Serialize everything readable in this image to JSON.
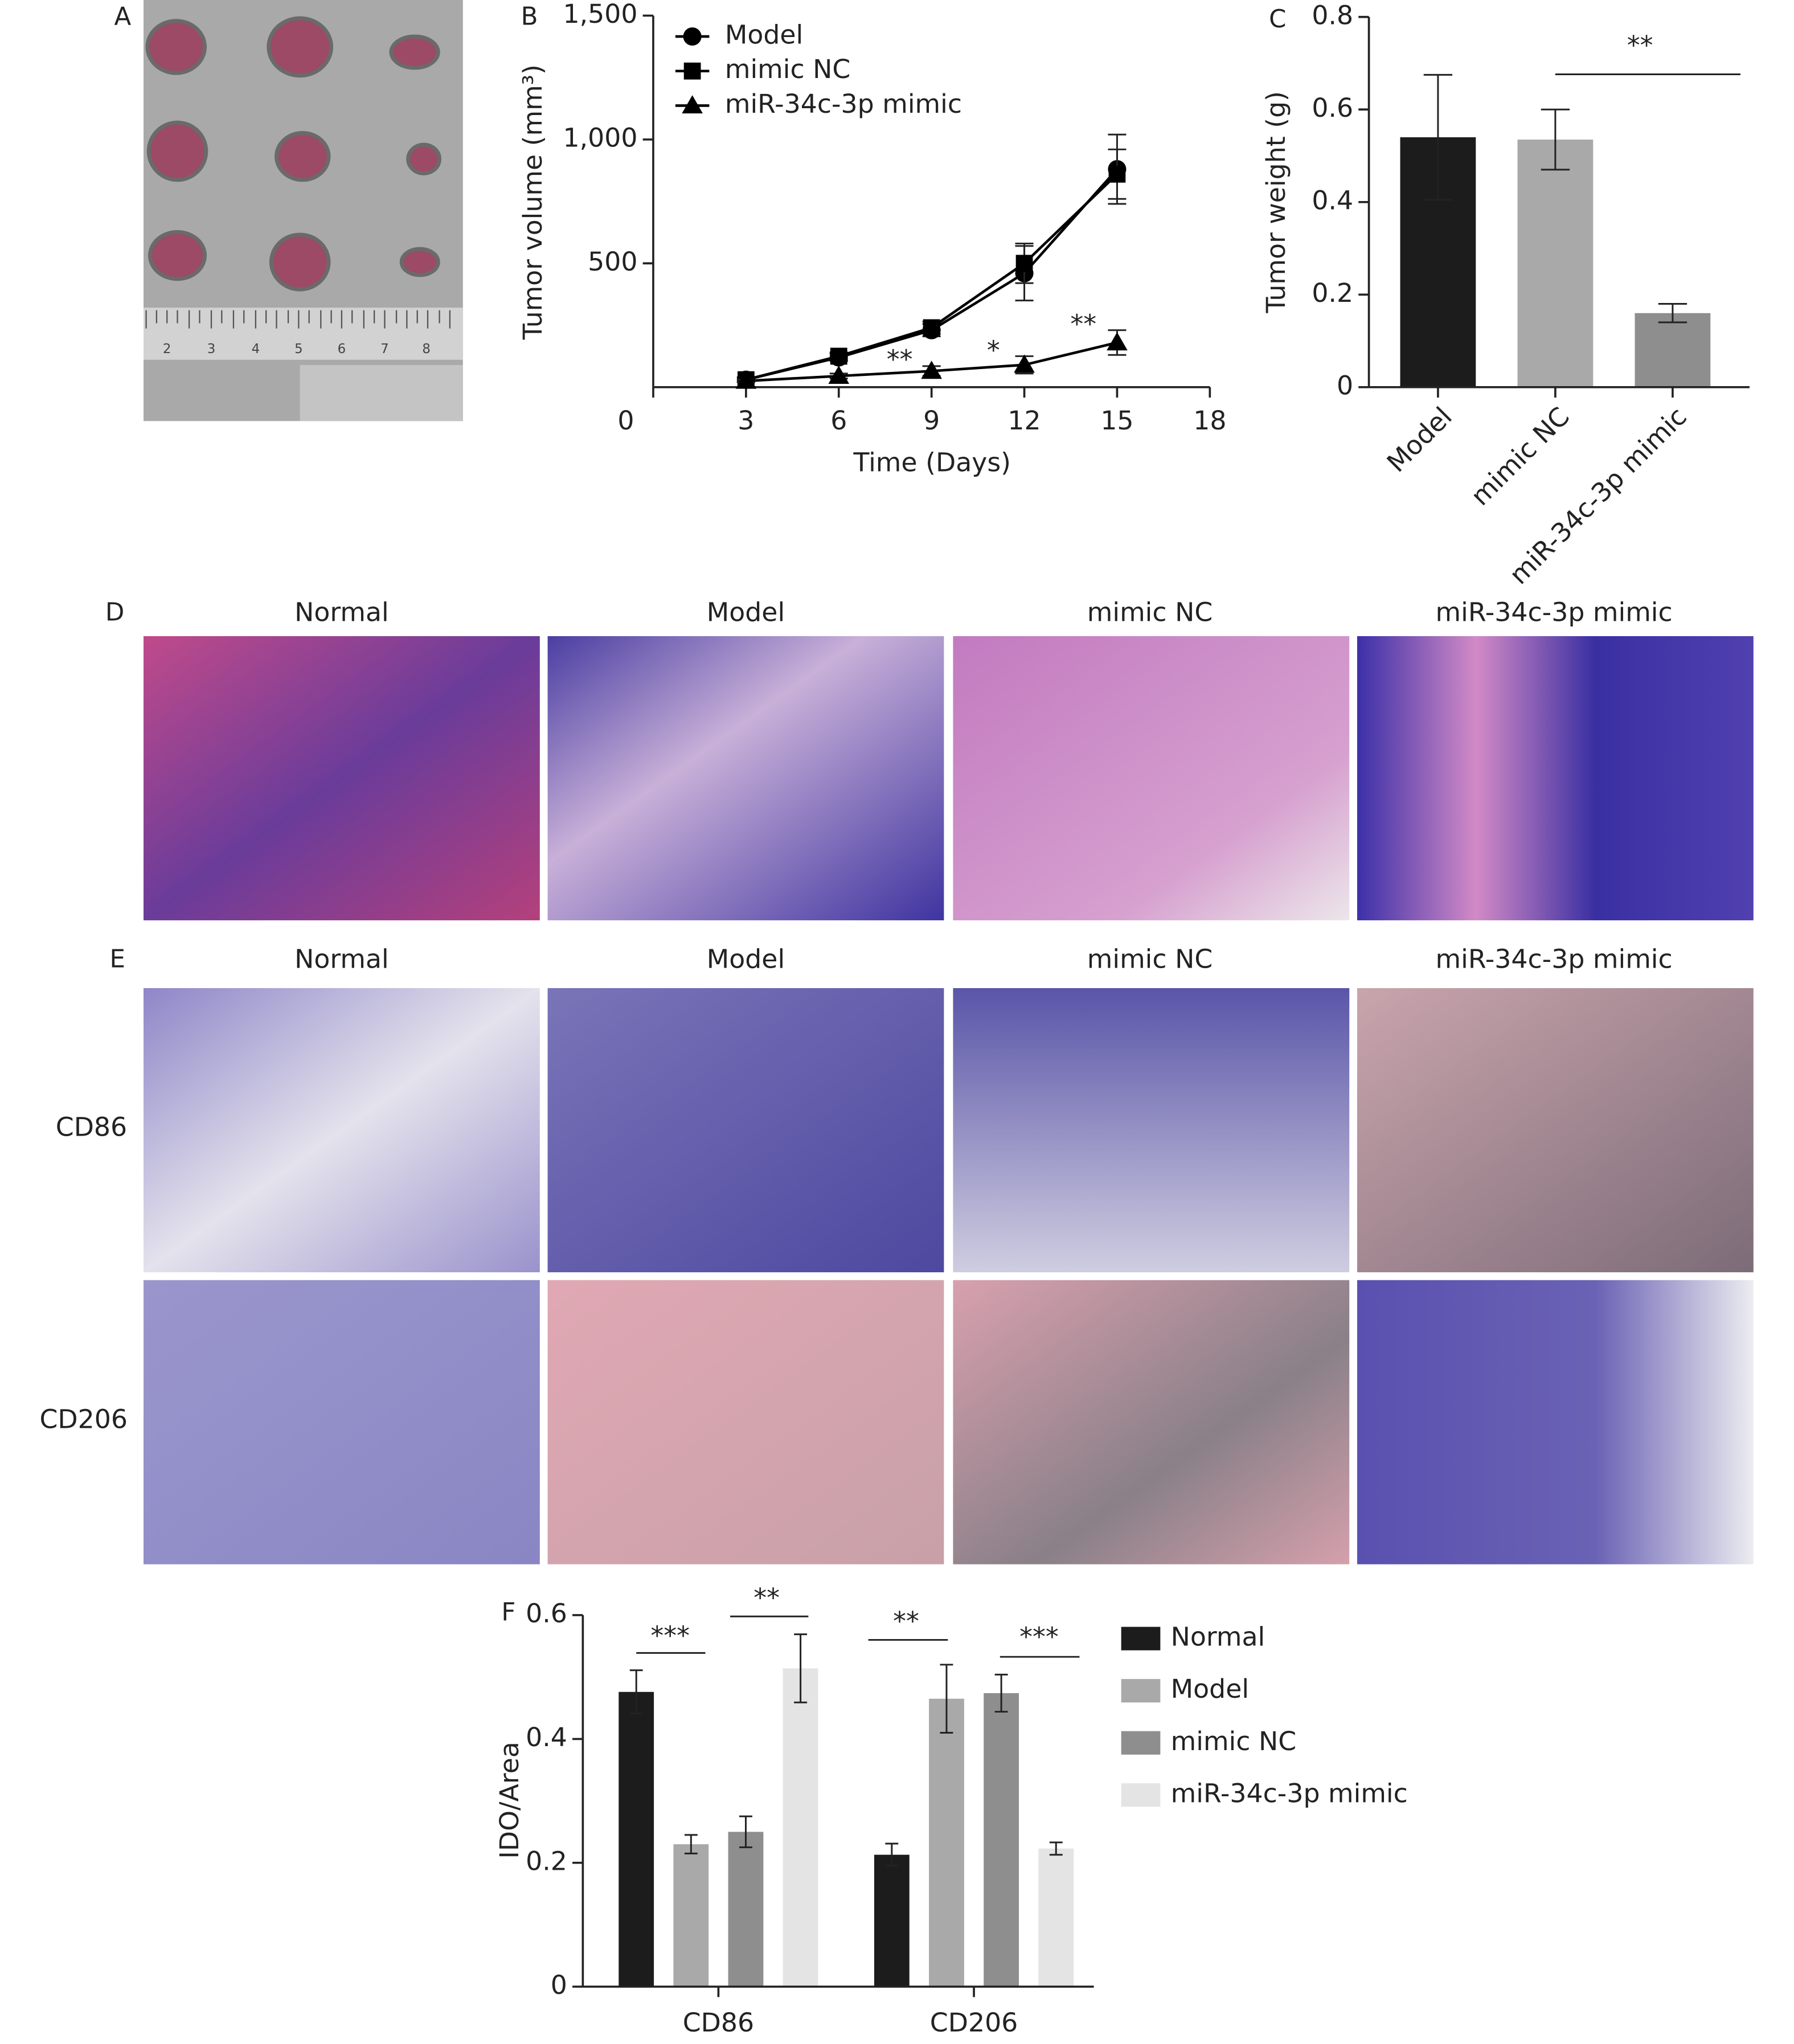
{
  "figure": {
    "panel_labels": [
      "A",
      "B",
      "C",
      "D",
      "E",
      "F"
    ],
    "photo_ruler_labels": [
      "2",
      "3",
      "4",
      "5",
      "6",
      "7",
      "8"
    ],
    "he_titles": [
      "Normal",
      "Model",
      "mimic NC",
      "miR-34c-3p mimic"
    ],
    "ihc_titles": [
      "Normal",
      "Model",
      "mimic NC",
      "miR-34c-3p mimic"
    ],
    "ihc_rows": [
      "CD86",
      "CD206"
    ]
  },
  "chart_data": [
    {
      "type": "line",
      "xlabel": "Time (Days)",
      "ylabel": "Tumor volume (mm³)",
      "x": [
        3,
        6,
        9,
        12,
        15
      ],
      "xlim": [
        0,
        18
      ],
      "xticks": [
        0,
        3,
        6,
        9,
        12,
        15,
        18
      ],
      "ylim": [
        0,
        1500
      ],
      "yticks": [
        500,
        {
          "value": 1000,
          "label": "1,000"
        },
        {
          "value": 1500,
          "label": "1,500"
        }
      ],
      "series": [
        {
          "name": "Model",
          "color": "#000000",
          "marker": "circle",
          "values": [
            30,
            120,
            230,
            460,
            880
          ],
          "errors": [
            10,
            15,
            25,
            110,
            140
          ]
        },
        {
          "name": "mimic NC",
          "color": "#000000",
          "marker": "square",
          "values": [
            30,
            125,
            240,
            500,
            860
          ],
          "errors": [
            10,
            15,
            25,
            80,
            100
          ]
        },
        {
          "name": "miR-34c-3p mimic",
          "color": "#000000",
          "marker": "triangle",
          "values": [
            25,
            45,
            65,
            90,
            180
          ],
          "errors": [
            5,
            10,
            20,
            35,
            50
          ]
        }
      ],
      "annotations": [
        "**",
        "*",
        "**"
      ],
      "legend": "upper left"
    },
    {
      "type": "bar",
      "ylabel": "Tumor weight (g)",
      "categories": [
        "Model",
        "mimic NC",
        "miR-34c-3p mimic"
      ],
      "values": [
        0.54,
        0.535,
        0.16
      ],
      "errors": [
        0.135,
        0.065,
        0.02
      ],
      "colors": [
        "#1c1c1c",
        "#a9a9a9",
        "#8e8e8e"
      ],
      "ylim": [
        0,
        0.8
      ],
      "yticks": [
        0,
        0.2,
        0.4,
        0.6,
        0.8
      ],
      "annotations": [
        "**"
      ]
    },
    {
      "type": "grouped_bar",
      "ylabel": "IDO/Area",
      "categories": [
        "CD86",
        "CD206"
      ],
      "series": [
        {
          "name": "Normal",
          "color": "#1c1c1c",
          "values": [
            0.476,
            0.213
          ],
          "errors": [
            0.035,
            0.018
          ]
        },
        {
          "name": "Model",
          "color": "#a9a9a9",
          "values": [
            0.23,
            0.465
          ],
          "errors": [
            0.015,
            0.055
          ]
        },
        {
          "name": "mimic NC",
          "color": "#8e8e8e",
          "values": [
            0.25,
            0.474
          ],
          "errors": [
            0.025,
            0.03
          ]
        },
        {
          "name": "miR-34c-3p mimic",
          "color": "#e4e4e4",
          "values": [
            0.514,
            0.223
          ],
          "errors": [
            0.055,
            0.01
          ]
        }
      ],
      "ylim": [
        0,
        0.6
      ],
      "yticks": [
        0,
        0.2,
        0.4,
        0.6
      ],
      "annotations": [
        "***",
        "**",
        "**",
        "***"
      ],
      "legend": "right"
    }
  ]
}
